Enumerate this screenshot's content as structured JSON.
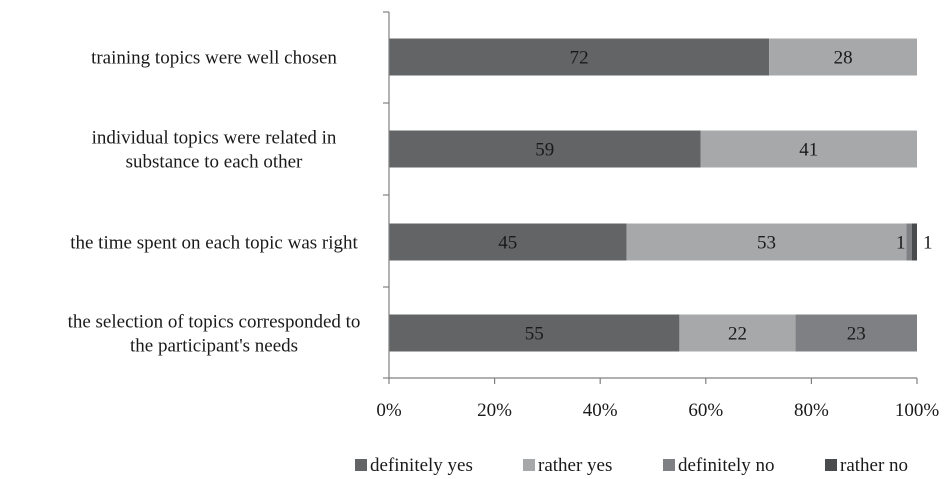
{
  "chart_data": {
    "type": "bar",
    "orientation": "horizontal",
    "stacked": "percent",
    "categories": [
      [
        "training topics were well chosen"
      ],
      [
        "individual topics were related in",
        "substance to each other"
      ],
      [
        "the time spent on each topic was right"
      ],
      [
        "the selection of topics corresponded to",
        "the participant's needs"
      ]
    ],
    "series": [
      {
        "name": "definitely yes",
        "color": "#636466",
        "values": [
          72,
          59,
          45,
          55
        ]
      },
      {
        "name": "rather yes",
        "color": "#a7a8aa",
        "values": [
          28,
          41,
          53,
          22
        ]
      },
      {
        "name": "definitely no",
        "color": "#7f8083",
        "values": [
          0,
          0,
          1,
          23
        ]
      },
      {
        "name": "rather no",
        "color": "#4a4b4d",
        "values": [
          0,
          0,
          1,
          0
        ]
      }
    ],
    "xlim": [
      0,
      100
    ],
    "xticks": [
      "0%",
      "20%",
      "40%",
      "60%",
      "80%",
      "100%"
    ],
    "grid": false,
    "legend": "bottom",
    "data_labels": true
  }
}
